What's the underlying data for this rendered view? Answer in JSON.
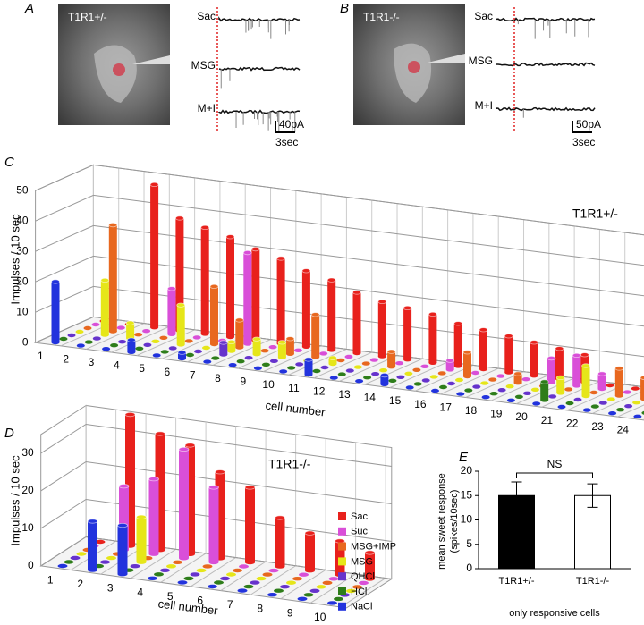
{
  "panel_a": {
    "letter": "A",
    "genotype": "T1R1+/-",
    "traces": [
      "Sac",
      "MSG",
      "M+I"
    ],
    "current_scale": "40pA",
    "time_scale": "3sec"
  },
  "panel_b": {
    "letter": "B",
    "genotype": "T1R1-/-",
    "traces": [
      "Sac",
      "MSG",
      "M+I"
    ],
    "current_scale": "50pA",
    "time_scale": "3sec"
  },
  "chart_data": [
    {
      "type": "bar3d",
      "panel": "C",
      "annotation": "T1R1+/-",
      "ylabel": "Impulses / 10 sec",
      "xlabel": "cell number",
      "x": [
        1,
        2,
        3,
        4,
        5,
        6,
        7,
        8,
        9,
        10,
        11,
        12,
        13,
        14,
        15,
        16,
        17,
        18,
        19,
        20,
        21,
        22,
        23,
        24
      ],
      "ylim": [
        0,
        50
      ],
      "yticks": [
        0,
        10,
        20,
        30,
        40,
        50
      ],
      "series": [
        {
          "color": "#e8211c",
          "values": [
            0,
            0,
            47,
            37,
            35,
            33,
            30,
            28,
            25,
            23,
            20,
            18,
            17,
            16,
            14,
            13,
            12,
            11,
            10,
            9,
            0,
            0,
            0,
            0
          ]
        },
        {
          "color": "#d94fd8",
          "values": [
            0,
            0,
            0,
            15,
            0,
            0,
            30,
            0,
            0,
            0,
            0,
            0,
            0,
            0,
            3,
            0,
            0,
            0,
            8,
            10,
            5,
            0,
            0,
            0
          ]
        },
        {
          "color": "#e8681f",
          "values": [
            0,
            35,
            0,
            0,
            0,
            19,
            9,
            0,
            5,
            14,
            0,
            0,
            5,
            0,
            0,
            8,
            0,
            3,
            0,
            0,
            0,
            9,
            7,
            4
          ]
        },
        {
          "color": "#e6e619",
          "values": [
            0,
            18,
            5,
            0,
            13,
            0,
            3,
            5,
            5,
            0,
            2,
            0,
            0,
            0,
            0,
            0,
            0,
            0,
            0,
            5,
            10,
            0,
            0,
            0
          ]
        },
        {
          "color": "#6633cc",
          "values": [
            0,
            0,
            0,
            0,
            0,
            0,
            4,
            0,
            0,
            0,
            0,
            0,
            0,
            0,
            0,
            0,
            0,
            0,
            0,
            0,
            0,
            0,
            0,
            0
          ]
        },
        {
          "color": "#2e7d1a",
          "values": [
            0,
            0,
            0,
            0,
            0,
            0,
            0,
            0,
            0,
            0,
            0,
            0,
            0,
            0,
            0,
            0,
            0,
            0,
            0,
            6,
            0,
            0,
            0,
            0
          ]
        },
        {
          "color": "#2233dd",
          "values": [
            20,
            0,
            0,
            4,
            0,
            2,
            0,
            0,
            0,
            0,
            5,
            0,
            0,
            3,
            0,
            0,
            0,
            0,
            0,
            0,
            0,
            0,
            0,
            0
          ]
        }
      ]
    },
    {
      "type": "bar3d",
      "panel": "D",
      "annotation": "T1R1-/-",
      "ylabel": "Impulses / 10 sec",
      "xlabel": "cell number",
      "x": [
        1,
        2,
        3,
        4,
        5,
        6,
        7,
        8,
        9,
        10
      ],
      "ylim": [
        0,
        35
      ],
      "yticks": [
        0,
        10,
        20,
        30
      ],
      "series": [
        {
          "name": "Sac",
          "color": "#e8211c",
          "values": [
            0,
            35,
            31,
            29,
            23,
            20,
            13,
            10,
            9,
            7
          ]
        },
        {
          "name": "Suc",
          "color": "#d94fd8",
          "values": [
            0,
            17,
            20,
            29,
            20,
            0,
            0,
            0,
            0,
            0
          ]
        },
        {
          "name": "MSG+IMP",
          "color": "#e8681f",
          "values": [
            0,
            0,
            0,
            0,
            0,
            0,
            0,
            0,
            0,
            0
          ]
        },
        {
          "name": "MSG",
          "color": "#e6e619",
          "values": [
            0,
            0,
            12,
            0,
            0,
            0,
            0,
            0,
            0,
            0
          ]
        },
        {
          "name": "QHCl",
          "color": "#6633cc",
          "values": [
            0,
            0,
            0,
            0,
            0,
            0,
            0,
            0,
            0,
            0
          ]
        },
        {
          "name": "HCl",
          "color": "#2e7d1a",
          "values": [
            0,
            0,
            0,
            0,
            0,
            0,
            0,
            0,
            0,
            0
          ]
        },
        {
          "name": "NaCl",
          "color": "#2233dd",
          "values": [
            0,
            13,
            13,
            0,
            0,
            0,
            0,
            0,
            0,
            0
          ]
        }
      ]
    },
    {
      "type": "bar",
      "panel": "E",
      "annotation": "NS",
      "xlabel": "only responsive cells",
      "ylabel": [
        "mean sweet response",
        "(spikes/10sec)"
      ],
      "categories": [
        "T1R1+/-",
        "T1R1-/-"
      ],
      "values": [
        15,
        15
      ],
      "errors": [
        2.8,
        2.4
      ],
      "colors": [
        "#000000",
        "#ffffff"
      ],
      "ylim": [
        0,
        20
      ],
      "yticks": [
        0,
        5,
        10,
        15,
        20
      ]
    }
  ]
}
